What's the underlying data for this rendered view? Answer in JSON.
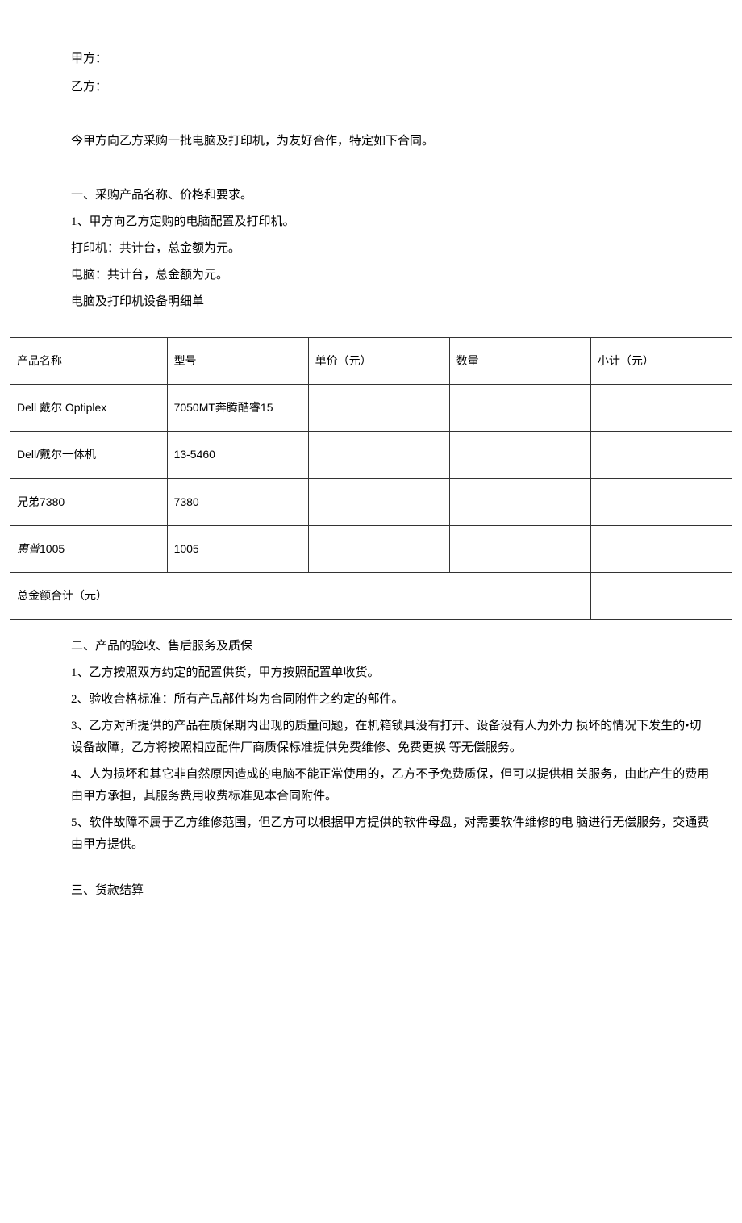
{
  "parties": {
    "party_a_label": "甲方：",
    "party_b_label": "乙方："
  },
  "intro": "今甲方向乙方采购一批电脑及打印机，为友好合作，特定如下合同。",
  "section_one": {
    "title": "一、采购产品名称、价格和要求。",
    "item1": "1、甲方向乙方定购的电脑配置及打印机。",
    "printer_line": "打印机：共计台，总金额为元。",
    "computer_line": "电脑：共计台，总金额为元。",
    "detail_title": "电脑及打印机设备明细单"
  },
  "table": {
    "headers": {
      "name": "产品名称",
      "model": "型号",
      "unit_price": "单价（元）",
      "quantity": "数量",
      "subtotal": "小计（元）"
    },
    "rows": [
      {
        "name": "Dell 戴尔  Optiplex",
        "model": "7050MT奔腾酷睿15",
        "unit_price": "",
        "quantity": "",
        "subtotal": ""
      },
      {
        "name": "Dell/戴尔一体机",
        "model": "13-5460",
        "unit_price": "",
        "quantity": "",
        "subtotal": ""
      },
      {
        "name": "兄弟7380",
        "model": "7380",
        "unit_price": "",
        "quantity": "",
        "subtotal": ""
      },
      {
        "name_prefix_italic": "惠普",
        "name_suffix": "1005",
        "model": "1005",
        "unit_price": "",
        "quantity": "",
        "subtotal": ""
      }
    ],
    "total_label": "总金额合计（元）",
    "total_value": ""
  },
  "section_two": {
    "title": "二、产品的验收、售后服务及质保",
    "item1": "1、乙方按照双方约定的配置供货，甲方按照配置单收货。",
    "item2": "2、验收合格标准：所有产品部件均为合同附件之约定的部件。",
    "item3": "3、乙方对所提供的产品在质保期内出现的质量问题，在机箱锁具没有打开、设备没有人为外力   损坏的情况下发生的•切设备故障，乙方将按照相应配件厂商质保标准提供免费维修、免费更换  等无偿服务。",
    "item4": "4、人为损坏和其它非自然原因造成的电脑不能正常使用的，乙方不予免费质保，但可以提供相   关服务，由此产生的费用由甲方承担，其服务费用收费标准见本合同附件。",
    "item5": "5、软件故障不属于乙方维修范围，但乙方可以根据甲方提供的软件母盘，对需要软件维修的电   脑进行无偿服务，交通费由甲方提供。"
  },
  "section_three": {
    "title": "三、货款结算"
  }
}
